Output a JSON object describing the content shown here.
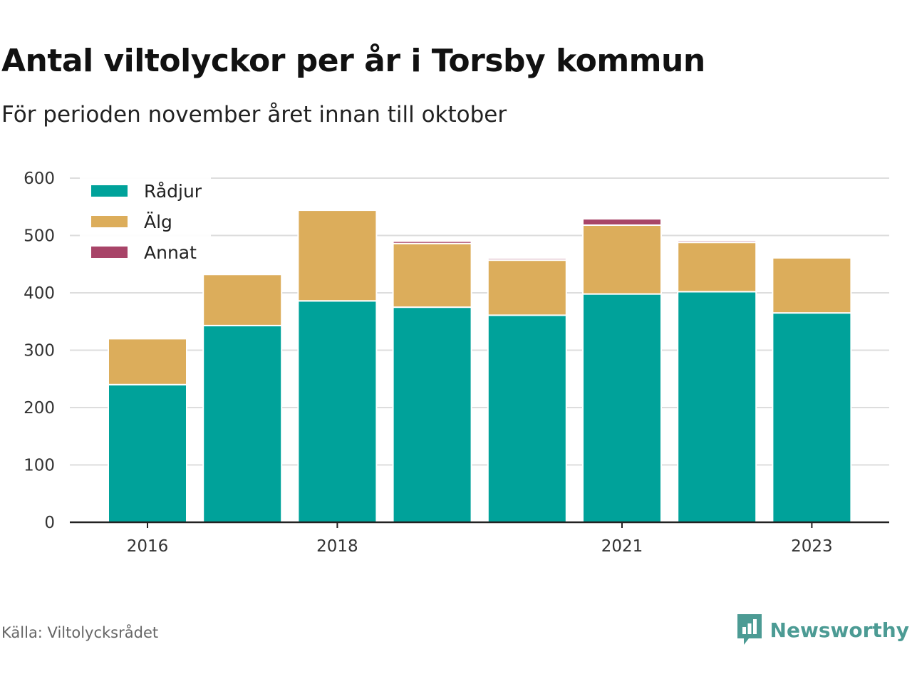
{
  "title": "Antal viltolyckor per år i Torsby kommun",
  "subtitle": "För perioden november året innan till oktober",
  "source": "Källa: Viltolycksrådet",
  "brand": "Newsworthy",
  "colors": {
    "radjur": "#00a29a",
    "alg": "#dcad5b",
    "annat": "#a84468",
    "brand": "#4c9b94"
  },
  "chart_data": {
    "type": "bar",
    "stacked": true,
    "categories": [
      "2016",
      "2017",
      "2018",
      "2019",
      "2020",
      "2021",
      "2022",
      "2023"
    ],
    "x_tick_labels": [
      "2016",
      "",
      "2018",
      "",
      "",
      "2021",
      "",
      "2023"
    ],
    "series": [
      {
        "name": "Rådjur",
        "color": "#00a29a",
        "values": [
          240,
          343,
          386,
          375,
          361,
          398,
          402,
          365
        ]
      },
      {
        "name": "Älg",
        "color": "#dcad5b",
        "values": [
          80,
          89,
          158,
          111,
          96,
          120,
          86,
          96
        ]
      },
      {
        "name": "Annat",
        "color": "#a84468",
        "values": [
          0,
          0,
          0,
          4,
          3,
          11,
          3,
          0
        ]
      }
    ],
    "ylim": [
      0,
      600
    ],
    "yticks": [
      0,
      100,
      200,
      300,
      400,
      500,
      600
    ],
    "grid": true,
    "legend_position": "top-left",
    "xlabel": "",
    "ylabel": ""
  }
}
